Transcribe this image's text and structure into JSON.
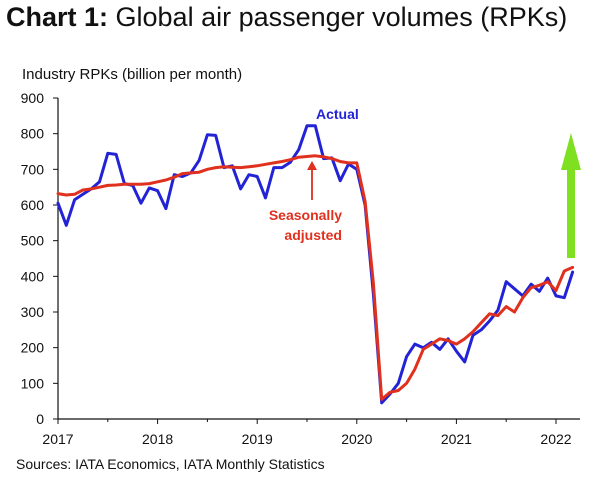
{
  "chart_data": {
    "type": "line",
    "title_bold": "Chart 1:",
    "title_rest": " Global air passenger volumes (RPKs)",
    "ylabel": "Industry RPKs (billion per month)",
    "source": "Sources: IATA Economics, IATA Monthly Statistics",
    "ylim": [
      0,
      900
    ],
    "yticks": [
      "0",
      "100",
      "200",
      "300",
      "400",
      "500",
      "600",
      "700",
      "800",
      "900"
    ],
    "xticks": [
      "2017",
      "2018",
      "2019",
      "2020",
      "2021",
      "2022"
    ],
    "x_start": "2017-01",
    "annotations": {
      "actual": "Actual",
      "sa_line1": "Seasonally",
      "sa_line2": "adjusted"
    },
    "colors": {
      "actual": "#2323d6",
      "sa": "#e0301e",
      "arrow": "#7fe021",
      "axis": "#111111"
    },
    "series": [
      {
        "name": "Actual",
        "values": [
          605,
          543,
          615,
          630,
          645,
          665,
          745,
          742,
          660,
          655,
          605,
          648,
          640,
          590,
          685,
          680,
          690,
          725,
          797,
          795,
          705,
          710,
          645,
          685,
          680,
          620,
          705,
          705,
          720,
          755,
          822,
          822,
          730,
          732,
          668,
          715,
          700,
          600,
          350,
          45,
          70,
          100,
          175,
          210,
          200,
          215,
          195,
          225,
          190,
          160,
          235,
          250,
          275,
          305,
          385,
          365,
          345,
          378,
          358,
          395,
          345,
          340,
          412
        ]
      },
      {
        "name": "Seasonally adjusted",
        "values": [
          632,
          628,
          630,
          642,
          645,
          650,
          655,
          656,
          658,
          658,
          658,
          660,
          665,
          670,
          678,
          688,
          690,
          692,
          700,
          705,
          707,
          706,
          705,
          707,
          710,
          714,
          718,
          722,
          727,
          734,
          736,
          738,
          735,
          730,
          722,
          718,
          718,
          610,
          380,
          55,
          75,
          80,
          100,
          140,
          195,
          210,
          225,
          220,
          210,
          225,
          245,
          270,
          295,
          290,
          315,
          300,
          340,
          368,
          375,
          385,
          360,
          415,
          425
        ]
      }
    ]
  }
}
